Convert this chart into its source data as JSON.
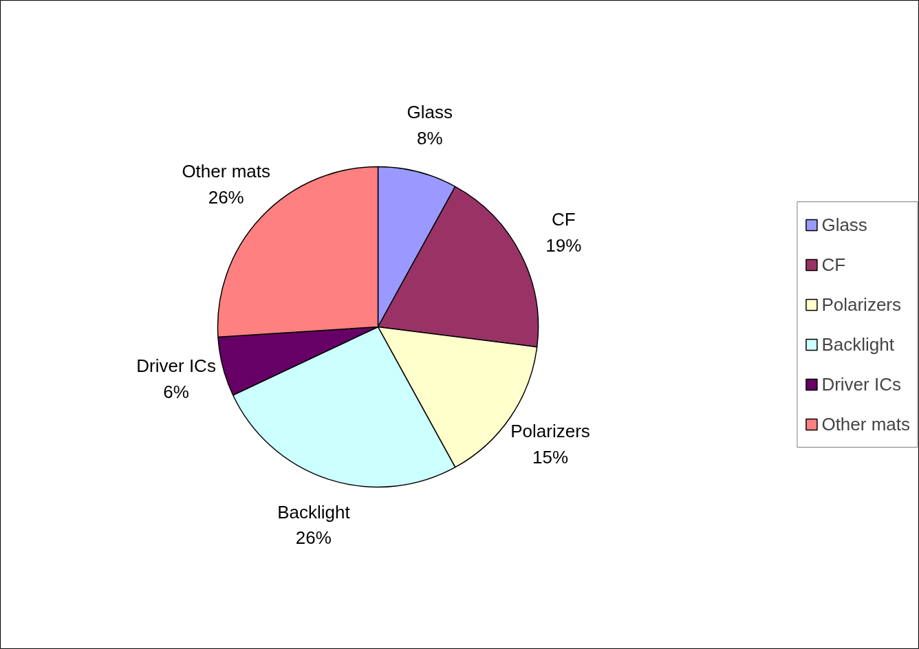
{
  "chart_data": {
    "type": "pie",
    "categories": [
      "Glass",
      "CF",
      "Polarizers",
      "Backlight",
      "Driver ICs",
      "Other mats"
    ],
    "values": [
      8,
      19,
      15,
      26,
      6,
      26
    ],
    "colors": [
      "#9999ff",
      "#993366",
      "#ffffcc",
      "#ccffff",
      "#660066",
      "#ff8080"
    ],
    "value_labels": [
      "8%",
      "19%",
      "15%",
      "26%",
      "6%",
      "26%"
    ],
    "legend": "right"
  }
}
